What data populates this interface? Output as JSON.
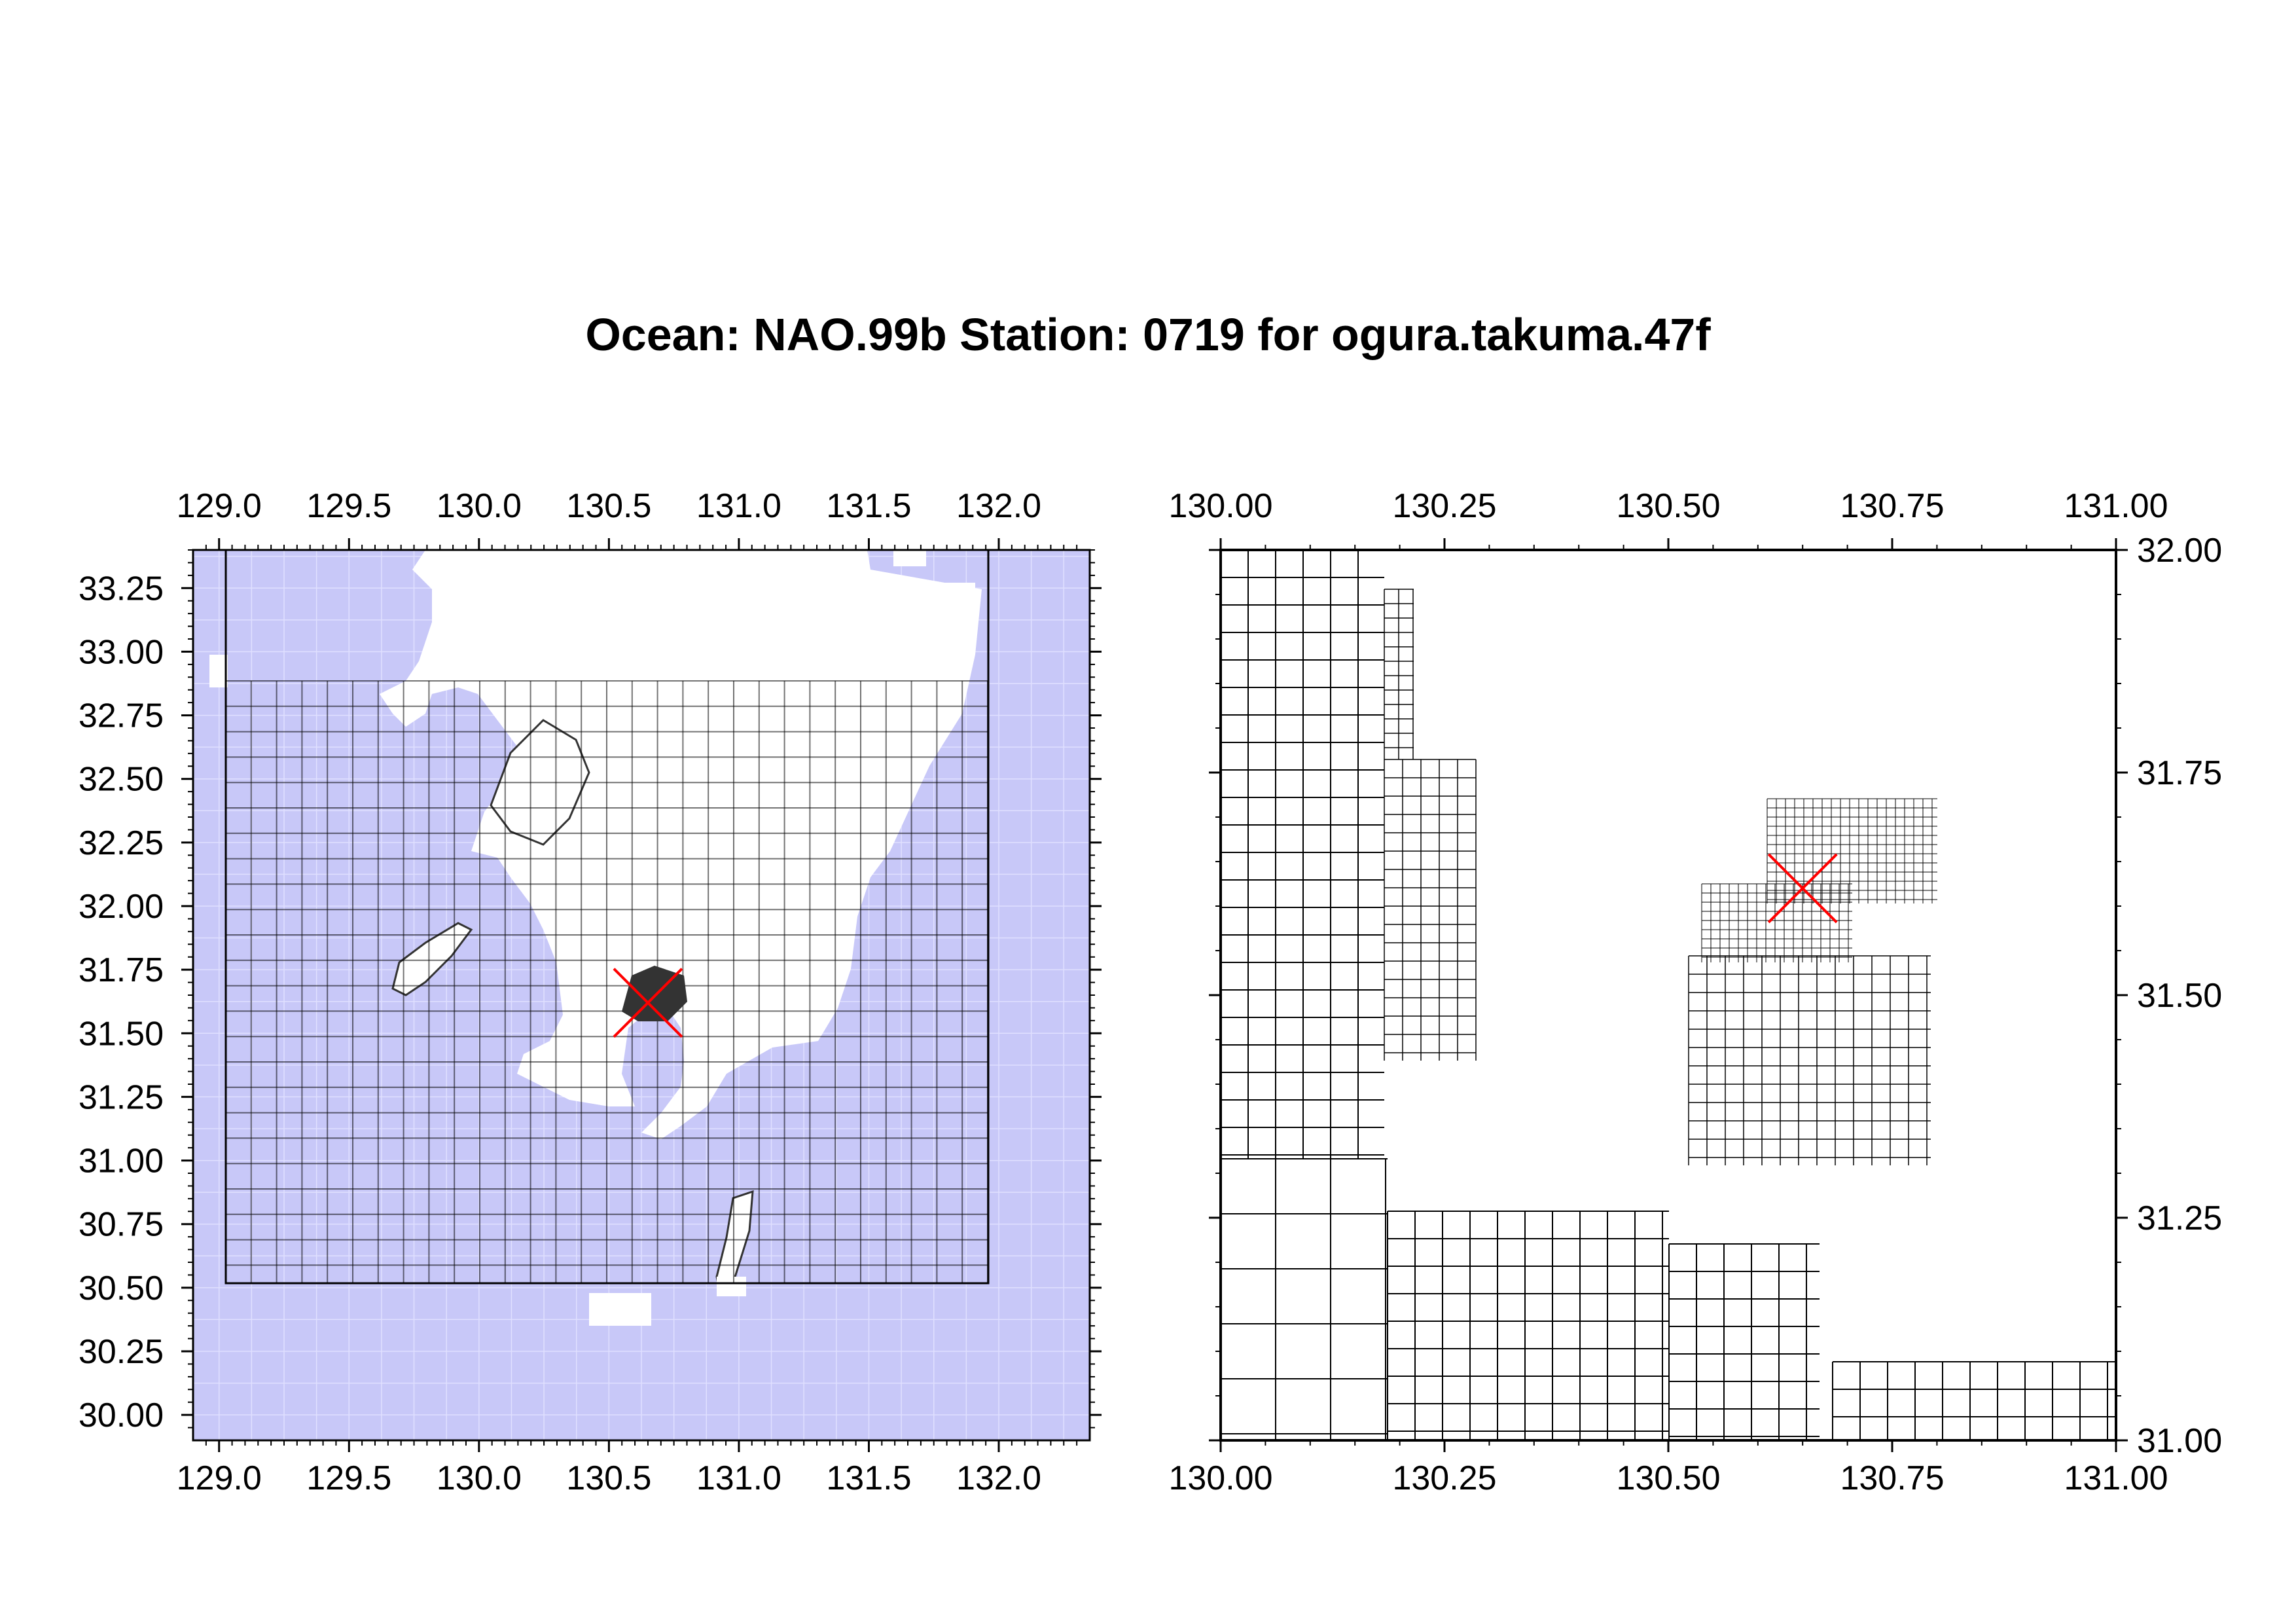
{
  "title": "Ocean: NAO.99b  Station: 0719  for ogura.takuma.47f",
  "colors": {
    "ocean_fill": "#c8c8f8",
    "land": "#ffffff",
    "grid_line": "#000000",
    "marker": "#ff0000",
    "dark_cells": "#333333"
  },
  "station": {
    "lon": 130.65,
    "lat": 31.62
  },
  "left_map": {
    "lon_range": [
      128.9,
      132.35
    ],
    "lat_range": [
      29.9,
      33.4
    ],
    "x_ticks": [
      "129.0",
      "129.5",
      "130.0",
      "130.5",
      "131.0",
      "131.5",
      "132.0"
    ],
    "y_ticks": [
      "33.25",
      "33.00",
      "32.75",
      "32.50",
      "32.25",
      "32.00",
      "31.75",
      "31.50",
      "31.25",
      "31.00",
      "30.75",
      "30.50",
      "30.25",
      "30.00"
    ]
  },
  "right_map": {
    "lon_range": [
      130.0,
      131.0
    ],
    "lat_range": [
      31.0,
      32.0
    ],
    "x_ticks": [
      "130.00",
      "130.25",
      "130.50",
      "130.75",
      "131.00"
    ],
    "y_ticks": [
      "32.00",
      "31.75",
      "31.50",
      "31.25",
      "31.00"
    ]
  }
}
